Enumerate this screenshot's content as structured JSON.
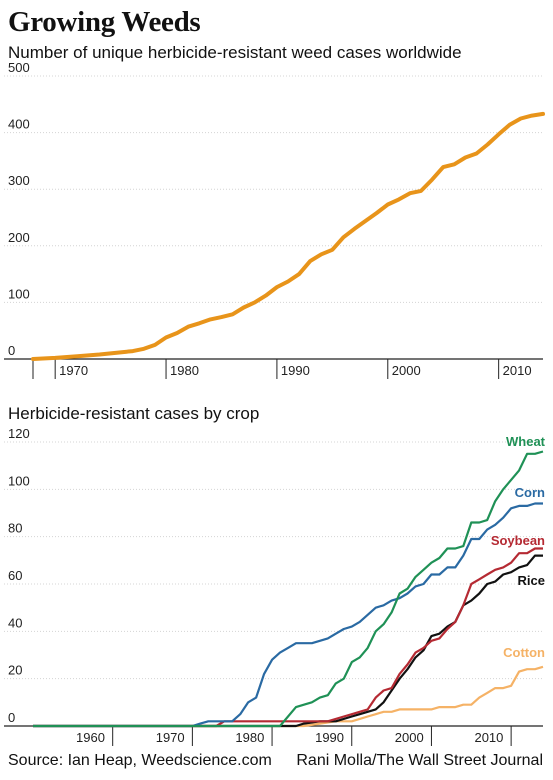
{
  "title": "Growing Weeds",
  "chart_data": [
    {
      "type": "line",
      "title": "Number of unique herbicide-resistant weed cases worldwide",
      "xlabel": "",
      "ylabel": "",
      "xlim": [
        1968,
        2014
      ],
      "ylim": [
        0,
        500
      ],
      "x_ticks": [
        "1970",
        "1980",
        "1990",
        "2000",
        "2010"
      ],
      "y_ticks": [
        "0",
        "100",
        "200",
        "300",
        "400",
        "500"
      ],
      "grid": true,
      "series": [
        {
          "color": "#e8941a",
          "x": [
            1968,
            1970,
            1972,
            1974,
            1976,
            1977,
            1978,
            1979,
            1980,
            1981,
            1982,
            1983,
            1984,
            1985,
            1986,
            1987,
            1988,
            1989,
            1990,
            1991,
            1992,
            1993,
            1994,
            1995,
            1996,
            1997,
            1998,
            1999,
            2000,
            2001,
            2002,
            2003,
            2004,
            2005,
            2006,
            2007,
            2008,
            2009,
            2010,
            2011,
            2012,
            2013,
            2014
          ],
          "values": [
            0,
            2,
            5,
            8,
            12,
            14,
            18,
            25,
            38,
            46,
            57,
            63,
            70,
            74,
            79,
            91,
            100,
            112,
            127,
            137,
            150,
            173,
            185,
            193,
            215,
            230,
            244,
            258,
            273,
            282,
            293,
            297,
            317,
            339,
            344,
            356,
            363,
            379,
            397,
            414,
            425,
            430,
            433
          ]
        }
      ]
    },
    {
      "type": "line",
      "title": "Herbicide-resistant cases by crop",
      "xlabel": "",
      "ylabel": "",
      "xlim": [
        1950,
        2014
      ],
      "ylim": [
        0,
        120
      ],
      "x_ticks": [
        "1960",
        "1970",
        "1980",
        "1990",
        "2000",
        "2010"
      ],
      "y_ticks": [
        "0",
        "20",
        "40",
        "60",
        "80",
        "100",
        "120"
      ],
      "grid": true,
      "series": [
        {
          "name": "Wheat",
          "color": "#1f9156",
          "x": [
            1950,
            1971,
            1977,
            1981,
            1983,
            1984,
            1985,
            1986,
            1987,
            1988,
            1989,
            1990,
            1991,
            1992,
            1993,
            1994,
            1995,
            1996,
            1997,
            1998,
            1999,
            2000,
            2001,
            2002,
            2003,
            2004,
            2005,
            2006,
            2007,
            2008,
            2009,
            2010,
            2011,
            2012,
            2013,
            2014
          ],
          "values": [
            0,
            0,
            0,
            0,
            8,
            9,
            10,
            12,
            13,
            18,
            20,
            27,
            29,
            33,
            40,
            43,
            48,
            56,
            58,
            63,
            66,
            69,
            71,
            75,
            75,
            76,
            86,
            86,
            87,
            95,
            100,
            104,
            108,
            115,
            115,
            116
          ]
        },
        {
          "name": "Corn",
          "color": "#2a6aa3",
          "x": [
            1950,
            1970,
            1971,
            1972,
            1973,
            1974,
            1975,
            1976,
            1977,
            1978,
            1979,
            1980,
            1981,
            1982,
            1983,
            1984,
            1985,
            1986,
            1987,
            1988,
            1989,
            1990,
            1991,
            1992,
            1993,
            1994,
            1995,
            1996,
            1997,
            1998,
            1999,
            2000,
            2001,
            2002,
            2003,
            2004,
            2005,
            2006,
            2007,
            2008,
            2009,
            2010,
            2011,
            2012,
            2013,
            2014
          ],
          "values": [
            0,
            0,
            1,
            2,
            2,
            2,
            2,
            5,
            10,
            12,
            22,
            28,
            31,
            33,
            35,
            35,
            35,
            36,
            37,
            39,
            41,
            42,
            44,
            47,
            50,
            51,
            53,
            54,
            56,
            59,
            60,
            64,
            64,
            67,
            67,
            72,
            79,
            79,
            83,
            85,
            88,
            92,
            93,
            93,
            94,
            94
          ]
        },
        {
          "name": "Soybean",
          "color": "#b52a33",
          "x": [
            1950,
            1973,
            1974,
            1986,
            1987,
            1988,
            1989,
            1990,
            1991,
            1992,
            1993,
            1994,
            1995,
            1996,
            1997,
            1998,
            1999,
            2000,
            2001,
            2002,
            2003,
            2004,
            2005,
            2006,
            2007,
            2008,
            2009,
            2010,
            2011,
            2012,
            2013,
            2014
          ],
          "values": [
            0,
            0,
            2,
            2,
            2,
            3,
            4,
            5,
            6,
            7,
            12,
            15,
            16,
            22,
            26,
            31,
            33,
            36,
            37,
            41,
            44,
            51,
            60,
            62,
            64,
            66,
            67,
            69,
            73,
            73,
            75,
            75
          ]
        },
        {
          "name": "Rice",
          "color": "#111111",
          "x": [
            1950,
            1983,
            1984,
            1986,
            1988,
            1990,
            1991,
            1992,
            1993,
            1994,
            1995,
            1996,
            1997,
            1998,
            1999,
            2000,
            2001,
            2002,
            2003,
            2004,
            2005,
            2006,
            2007,
            2008,
            2009,
            2010,
            2011,
            2012,
            2013,
            2014
          ],
          "values": [
            0,
            0,
            1,
            2,
            2,
            4,
            5,
            6,
            7,
            10,
            15,
            20,
            24,
            29,
            32,
            38,
            39,
            42,
            44,
            51,
            53,
            56,
            60,
            61,
            64,
            65,
            67,
            68,
            72,
            72
          ]
        },
        {
          "name": "Cotton",
          "color": "#f5b266",
          "x": [
            1950,
            1984,
            1986,
            1988,
            1990,
            1991,
            1992,
            1993,
            1994,
            1995,
            1996,
            1997,
            1998,
            1999,
            2000,
            2001,
            2002,
            2003,
            2004,
            2005,
            2006,
            2007,
            2008,
            2009,
            2010,
            2011,
            2012,
            2013,
            2014
          ],
          "values": [
            0,
            0,
            1,
            2,
            2,
            3,
            4,
            5,
            6,
            6,
            7,
            7,
            7,
            7,
            7,
            8,
            8,
            8,
            9,
            9,
            12,
            14,
            16,
            16,
            17,
            23,
            24,
            24,
            25
          ]
        }
      ]
    }
  ],
  "footer": {
    "source": "Source: Ian Heap, Weedscience.com",
    "credit": "Rani Molla/The Wall Street Journal"
  }
}
